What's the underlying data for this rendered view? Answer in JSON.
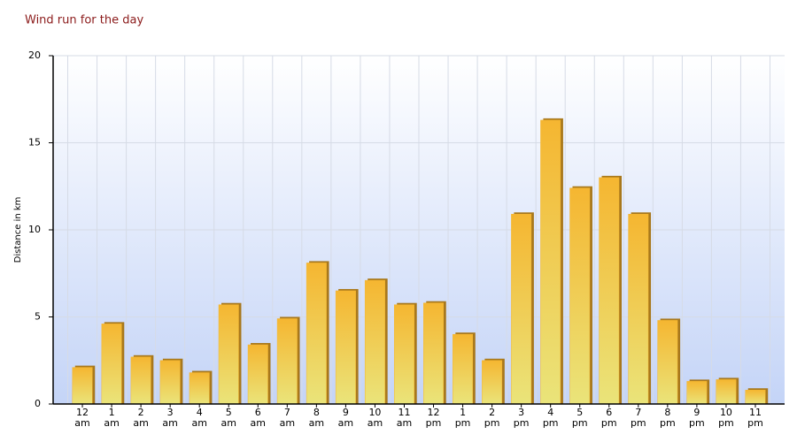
{
  "chart_data": {
    "type": "bar",
    "title": "Wind run for the day",
    "y_label": "Distance in km",
    "categories": [
      "12 am",
      "1 am",
      "2 am",
      "3 am",
      "4 am",
      "5 am",
      "6 am",
      "7 am",
      "8 am",
      "9 am",
      "10 am",
      "11 am",
      "12 pm",
      "1 pm",
      "2 pm",
      "3 pm",
      "4 pm",
      "5 pm",
      "6 pm",
      "7 pm",
      "8 pm",
      "9 pm",
      "10 pm",
      "11 pm"
    ],
    "values": [
      2.1,
      4.6,
      2.7,
      2.5,
      1.8,
      5.7,
      3.4,
      4.9,
      8.1,
      6.5,
      7.1,
      5.7,
      5.8,
      4.0,
      2.5,
      10.9,
      16.3,
      12.4,
      13.0,
      10.9,
      4.8,
      1.3,
      1.4,
      0.8
    ],
    "color": "#f5b731",
    "ylim": [
      0,
      20
    ],
    "yticks": [
      0,
      5,
      10,
      15,
      20
    ],
    "grid": true
  }
}
